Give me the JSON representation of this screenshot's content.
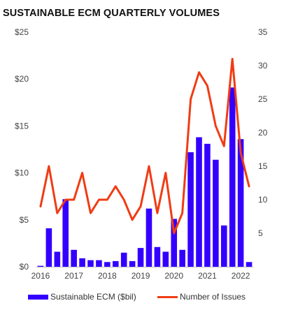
{
  "chart_data": {
    "type": "bar",
    "title": "SUSTAINABLE ECM QUARTERLY VOLUMES",
    "x_tick_labels": [
      "2016",
      "2017",
      "2018",
      "2019",
      "2020",
      "2021",
      "2022"
    ],
    "series": [
      {
        "name": "Sustainable ECM ($bil)",
        "type": "bar",
        "axis": "left",
        "color": "#3300ff",
        "values": [
          0.1,
          4.1,
          1.6,
          7.2,
          1.8,
          0.9,
          0.7,
          0.7,
          0.5,
          0.6,
          1.5,
          0.6,
          2.0,
          6.2,
          2.1,
          1.6,
          5.1,
          1.8,
          12.2,
          13.8,
          13.1,
          11.4,
          4.4,
          19.1,
          13.6,
          0.5
        ]
      },
      {
        "name": "Number of Issues",
        "type": "line",
        "axis": "right",
        "color": "#f03c14",
        "values": [
          9,
          15,
          8,
          10,
          10,
          14,
          8,
          10,
          10,
          12,
          10,
          7,
          9,
          15,
          8,
          14,
          5,
          8,
          25,
          29,
          27,
          21,
          18,
          31,
          17,
          12
        ]
      }
    ],
    "y_left": {
      "min": 0,
      "max": 25,
      "ticks": [
        0,
        5,
        10,
        15,
        20,
        25
      ],
      "tick_labels": [
        "$0",
        "$5",
        "$10",
        "$15",
        "$20",
        "$25"
      ]
    },
    "y_right": {
      "min": 0,
      "max": 35,
      "ticks": [
        5,
        10,
        15,
        20,
        25,
        30,
        35
      ],
      "tick_labels": [
        "5",
        "10",
        "15",
        "20",
        "25",
        "30",
        "35"
      ]
    },
    "grid": false,
    "legend_position": "bottom"
  }
}
